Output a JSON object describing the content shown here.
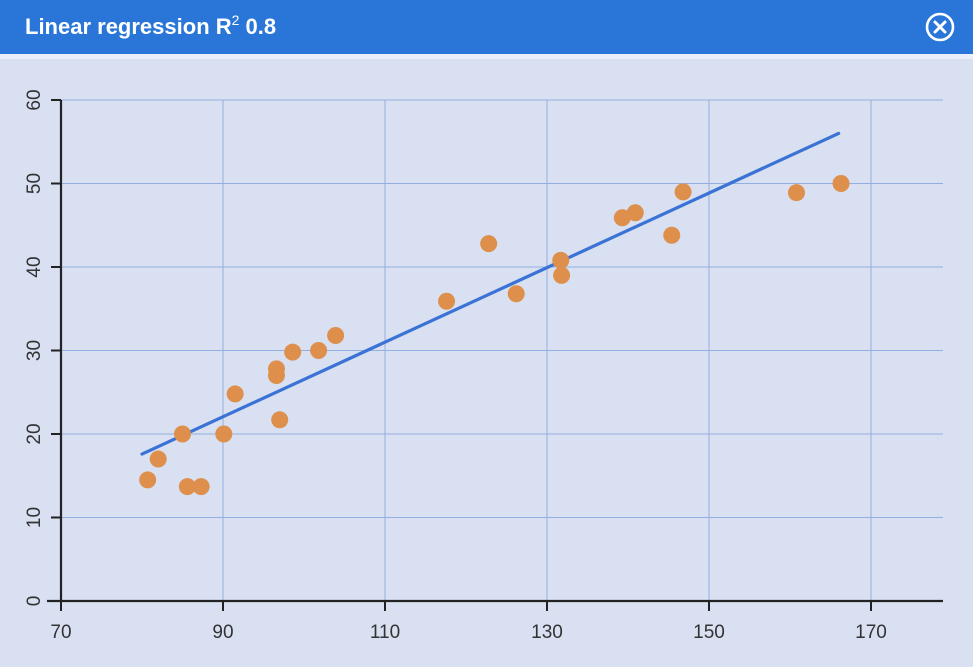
{
  "window": {
    "title_main": "Linear regression R",
    "title_sup": "2",
    "title_value": " 0.8",
    "close_icon": "close-circle-icon",
    "header_color": "#2a76d8",
    "background_color": "#d8e0f1"
  },
  "chart_data": {
    "type": "scatter",
    "title": "Linear regression R² 0.8",
    "xlabel": "",
    "ylabel": "",
    "xlim": [
      70,
      180
    ],
    "ylim": [
      0,
      60
    ],
    "x_ticks": [
      70,
      90,
      110,
      130,
      150,
      170
    ],
    "y_ticks": [
      0,
      10,
      20,
      30,
      40,
      50,
      60
    ],
    "grid": true,
    "point_color": "#de8f4c",
    "line_color": "#3a72d6",
    "points": [
      {
        "x": 80.7,
        "y": 14.5
      },
      {
        "x": 82.0,
        "y": 17.0
      },
      {
        "x": 85.0,
        "y": 20.0
      },
      {
        "x": 85.6,
        "y": 13.7
      },
      {
        "x": 87.3,
        "y": 13.7
      },
      {
        "x": 90.1,
        "y": 20.0
      },
      {
        "x": 91.5,
        "y": 24.8
      },
      {
        "x": 96.6,
        "y": 27.8
      },
      {
        "x": 96.6,
        "y": 27.0
      },
      {
        "x": 97.0,
        "y": 21.7
      },
      {
        "x": 98.6,
        "y": 29.8
      },
      {
        "x": 101.8,
        "y": 30.0
      },
      {
        "x": 103.9,
        "y": 31.8
      },
      {
        "x": 117.6,
        "y": 35.9
      },
      {
        "x": 122.8,
        "y": 42.8
      },
      {
        "x": 126.2,
        "y": 36.8
      },
      {
        "x": 131.7,
        "y": 40.8
      },
      {
        "x": 131.8,
        "y": 39.0
      },
      {
        "x": 139.3,
        "y": 45.9
      },
      {
        "x": 140.9,
        "y": 46.5
      },
      {
        "x": 145.4,
        "y": 43.8
      },
      {
        "x": 146.8,
        "y": 49.0
      },
      {
        "x": 160.8,
        "y": 48.9
      },
      {
        "x": 166.3,
        "y": 50.0
      }
    ],
    "regression_line": {
      "x": [
        80.0,
        166.0
      ],
      "y": [
        17.6,
        56.0
      ]
    }
  }
}
